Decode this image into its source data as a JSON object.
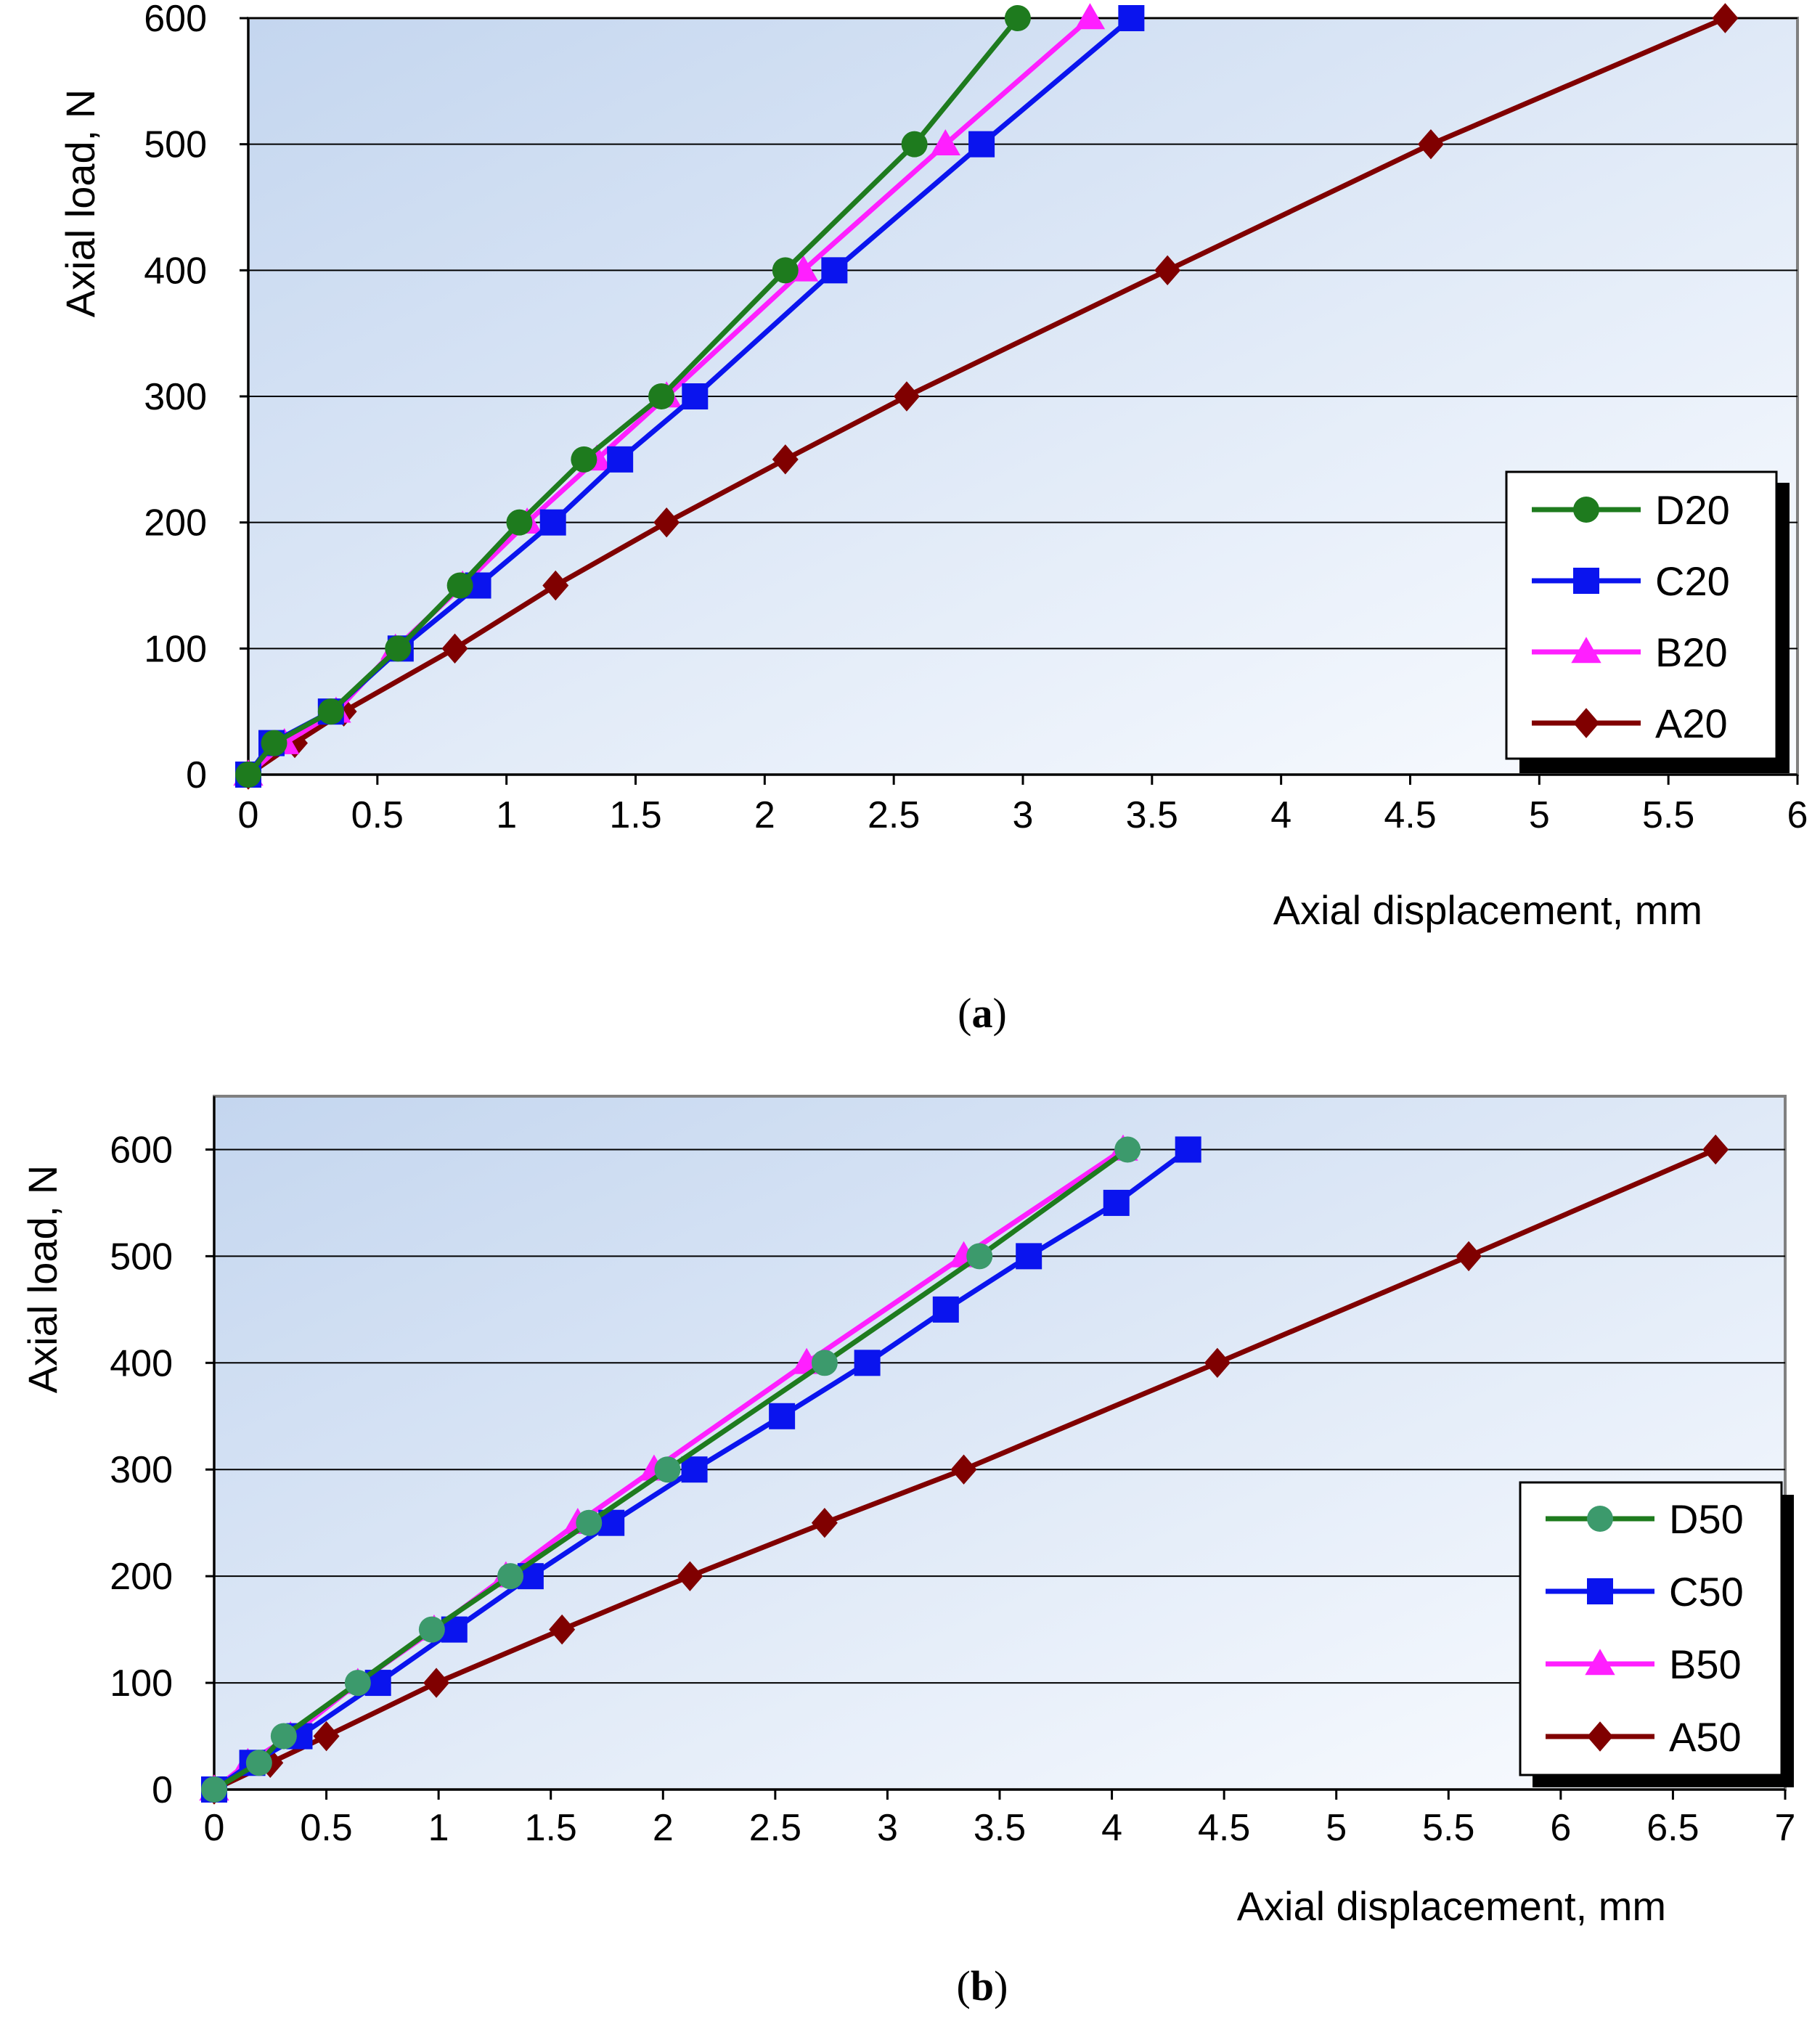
{
  "chart_data": [
    {
      "type": "line",
      "panel_label": "a",
      "xlabel": "Axial displacement, mm",
      "ylabel": "Axial load, N",
      "xlim": [
        0,
        6
      ],
      "ylim": [
        0,
        600
      ],
      "x_ticks": [
        "0",
        "0.5",
        "1",
        "1.5",
        "2",
        "2.5",
        "3",
        "3.5",
        "4",
        "4.5",
        "5",
        "5.5",
        "6"
      ],
      "y_ticks": [
        "0",
        "100",
        "200",
        "300",
        "400",
        "500",
        "600"
      ],
      "grid": "horizontal",
      "legend_position": "bottom-right",
      "series": [
        {
          "name": "D20",
          "color": "#1e7b1e",
          "marker": "circle",
          "points": [
            [
              0,
              0
            ],
            [
              0.1,
              25
            ],
            [
              0.32,
              50
            ],
            [
              0.58,
              100
            ],
            [
              0.82,
              150
            ],
            [
              1.05,
              200
            ],
            [
              1.3,
              250
            ],
            [
              1.6,
              300
            ],
            [
              2.08,
              400
            ],
            [
              2.58,
              500
            ],
            [
              2.98,
              600
            ]
          ]
        },
        {
          "name": "C20",
          "color": "#0a14ee",
          "marker": "square",
          "points": [
            [
              0,
              0
            ],
            [
              0.09,
              25
            ],
            [
              0.32,
              50
            ],
            [
              0.59,
              100
            ],
            [
              0.89,
              150
            ],
            [
              1.18,
              200
            ],
            [
              1.44,
              250
            ],
            [
              1.73,
              300
            ],
            [
              2.27,
              400
            ],
            [
              2.84,
              500
            ],
            [
              3.42,
              600
            ]
          ]
        },
        {
          "name": "B20",
          "color": "#ff1fff",
          "marker": "triangle",
          "points": [
            [
              0,
              0
            ],
            [
              0.14,
              25
            ],
            [
              0.34,
              50
            ],
            [
              0.57,
              100
            ],
            [
              0.83,
              150
            ],
            [
              1.08,
              200
            ],
            [
              1.35,
              250
            ],
            [
              1.62,
              300
            ],
            [
              2.15,
              400
            ],
            [
              2.7,
              500
            ],
            [
              3.26,
              600
            ]
          ]
        },
        {
          "name": "A20",
          "color": "#800000",
          "marker": "diamond",
          "points": [
            [
              0,
              0
            ],
            [
              0.18,
              25
            ],
            [
              0.37,
              50
            ],
            [
              0.8,
              100
            ],
            [
              1.19,
              150
            ],
            [
              1.62,
              200
            ],
            [
              2.08,
              250
            ],
            [
              2.55,
              300
            ],
            [
              3.56,
              400
            ],
            [
              4.58,
              500
            ],
            [
              5.72,
              600
            ]
          ]
        }
      ]
    },
    {
      "type": "line",
      "panel_label": "b",
      "xlabel": "Axial displacement, mm",
      "ylabel": "Axial load, N",
      "xlim": [
        0,
        7
      ],
      "ylim": [
        0,
        650
      ],
      "x_ticks": [
        "0",
        "0.5",
        "1",
        "1.5",
        "2",
        "2.5",
        "3",
        "3.5",
        "4",
        "4.5",
        "5",
        "5.5",
        "6",
        "6.5",
        "7"
      ],
      "y_ticks": [
        "0",
        "100",
        "200",
        "300",
        "400",
        "500",
        "600"
      ],
      "grid": "horizontal",
      "legend_position": "bottom-right",
      "series": [
        {
          "name": "D50",
          "color": "#1e7b1e",
          "marker_color": "#3c9a6c",
          "marker": "circle",
          "points": [
            [
              0,
              0
            ],
            [
              0.2,
              25
            ],
            [
              0.31,
              50
            ],
            [
              0.64,
              100
            ],
            [
              0.97,
              150
            ],
            [
              1.32,
              200
            ],
            [
              1.67,
              250
            ],
            [
              2.02,
              300
            ],
            [
              2.72,
              400
            ],
            [
              3.41,
              500
            ],
            [
              4.07,
              600
            ]
          ]
        },
        {
          "name": "C50",
          "color": "#0a14ee",
          "marker": "square",
          "points": [
            [
              0,
              0
            ],
            [
              0.17,
              25
            ],
            [
              0.38,
              50
            ],
            [
              0.73,
              100
            ],
            [
              1.07,
              150
            ],
            [
              1.41,
              200
            ],
            [
              1.77,
              250
            ],
            [
              2.14,
              300
            ],
            [
              2.53,
              350
            ],
            [
              2.91,
              400
            ],
            [
              3.26,
              450
            ],
            [
              3.63,
              500
            ],
            [
              4.02,
              550
            ],
            [
              4.34,
              600
            ]
          ]
        },
        {
          "name": "B50",
          "color": "#ff1fff",
          "marker": "triangle",
          "points": [
            [
              0,
              0
            ],
            [
              0.15,
              25
            ],
            [
              0.34,
              50
            ],
            [
              0.64,
              100
            ],
            [
              0.98,
              150
            ],
            [
              1.3,
              200
            ],
            [
              1.62,
              250
            ],
            [
              1.96,
              300
            ],
            [
              2.64,
              400
            ],
            [
              3.34,
              500
            ],
            [
              4.05,
              600
            ]
          ]
        },
        {
          "name": "A50",
          "color": "#800000",
          "marker": "diamond",
          "points": [
            [
              0,
              0
            ],
            [
              0.25,
              25
            ],
            [
              0.5,
              50
            ],
            [
              0.99,
              100
            ],
            [
              1.55,
              150
            ],
            [
              2.12,
              200
            ],
            [
              2.72,
              250
            ],
            [
              3.34,
              300
            ],
            [
              4.47,
              400
            ],
            [
              5.59,
              500
            ],
            [
              6.69,
              600
            ]
          ]
        }
      ]
    }
  ]
}
